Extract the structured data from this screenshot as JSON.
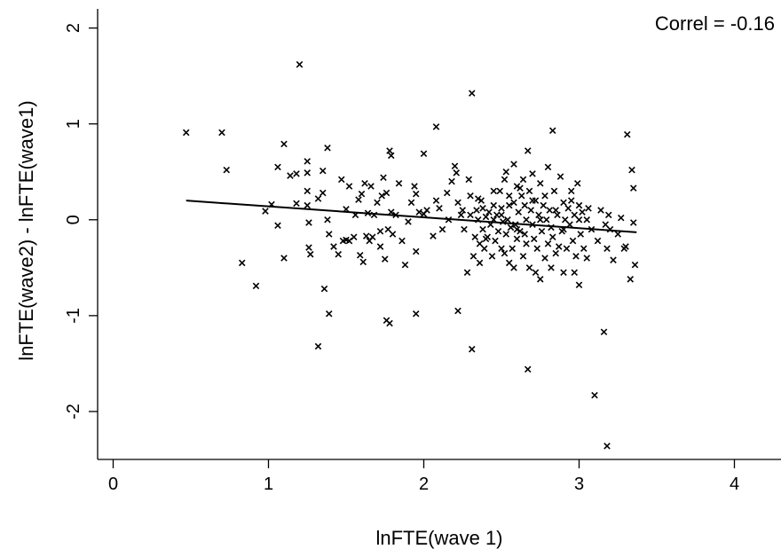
{
  "chart_data": {
    "type": "scatter",
    "title": "",
    "xlabel": "lnFTE(wave 1)",
    "ylabel": "lnFTE(wave2) - lnFTE(wave1)",
    "xlim": [
      -0.1,
      4.3
    ],
    "ylim": [
      -2.5,
      2.2
    ],
    "xticks": [
      0,
      1,
      2,
      3,
      4
    ],
    "yticks": [
      2,
      1,
      0,
      -1,
      -2
    ],
    "xtick_labels": [
      "0",
      "1",
      "2",
      "3",
      "4"
    ],
    "ytick_labels": [
      "2",
      "1",
      "0",
      "-1",
      "-2"
    ],
    "grid": false,
    "annotation": "Correl = -0.16",
    "marker": "x",
    "marker_color": "#000000",
    "fit_line": {
      "x": [
        0.47,
        3.37
      ],
      "y": [
        0.2,
        -0.13
      ]
    },
    "points": [
      [
        0.47,
        0.91
      ],
      [
        0.7,
        0.91
      ],
      [
        0.73,
        0.52
      ],
      [
        0.83,
        -0.45
      ],
      [
        0.92,
        -0.69
      ],
      [
        0.98,
        0.09
      ],
      [
        1.02,
        0.16
      ],
      [
        1.06,
        0.55
      ],
      [
        1.06,
        -0.06
      ],
      [
        1.1,
        0.79
      ],
      [
        1.1,
        -0.4
      ],
      [
        1.14,
        0.46
      ],
      [
        1.18,
        0.48
      ],
      [
        1.2,
        1.62
      ],
      [
        1.18,
        0.17
      ],
      [
        1.25,
        0.61
      ],
      [
        1.25,
        0.49
      ],
      [
        1.25,
        0.3
      ],
      [
        1.25,
        0.15
      ],
      [
        1.26,
        -0.03
      ],
      [
        1.26,
        -0.29
      ],
      [
        1.27,
        -0.36
      ],
      [
        1.32,
        0.22
      ],
      [
        1.32,
        -1.32
      ],
      [
        1.35,
        0.51
      ],
      [
        1.35,
        0.28
      ],
      [
        1.36,
        -0.72
      ],
      [
        1.38,
        0.75
      ],
      [
        1.38,
        0.0
      ],
      [
        1.39,
        -0.15
      ],
      [
        1.39,
        -0.98
      ],
      [
        1.42,
        -0.28
      ],
      [
        1.45,
        -0.36
      ],
      [
        1.47,
        0.42
      ],
      [
        1.48,
        -0.22
      ],
      [
        1.5,
        -0.21
      ],
      [
        1.5,
        0.11
      ],
      [
        1.52,
        0.35
      ],
      [
        1.52,
        -0.22
      ],
      [
        1.55,
        -0.18
      ],
      [
        1.56,
        0.05
      ],
      [
        1.58,
        0.21
      ],
      [
        1.59,
        -0.37
      ],
      [
        1.6,
        0.27
      ],
      [
        1.61,
        -0.44
      ],
      [
        1.62,
        0.38
      ],
      [
        1.63,
        -0.17
      ],
      [
        1.64,
        0.07
      ],
      [
        1.65,
        -0.22
      ],
      [
        1.66,
        0.35
      ],
      [
        1.67,
        -0.18
      ],
      [
        1.68,
        0.05
      ],
      [
        1.7,
        0.18
      ],
      [
        1.72,
        -0.28
      ],
      [
        1.72,
        -0.12
      ],
      [
        1.73,
        0.25
      ],
      [
        1.74,
        0.44
      ],
      [
        1.75,
        -0.41
      ],
      [
        1.76,
        -1.05
      ],
      [
        1.76,
        0.28
      ],
      [
        1.77,
        -0.1
      ],
      [
        1.78,
        0.72
      ],
      [
        1.78,
        -1.08
      ],
      [
        1.79,
        0.67
      ],
      [
        1.79,
        0.08
      ],
      [
        1.8,
        -0.15
      ],
      [
        1.82,
        0.05
      ],
      [
        1.84,
        0.38
      ],
      [
        1.86,
        -0.22
      ],
      [
        1.88,
        -0.47
      ],
      [
        1.9,
        -0.02
      ],
      [
        1.92,
        0.18
      ],
      [
        1.94,
        0.35
      ],
      [
        1.95,
        0.27
      ],
      [
        1.95,
        -0.98
      ],
      [
        1.95,
        -0.33
      ],
      [
        1.97,
        0.08
      ],
      [
        2.0,
        0.06
      ],
      [
        2.0,
        0.69
      ],
      [
        2.02,
        0.1
      ],
      [
        2.06,
        -0.17
      ],
      [
        2.08,
        0.97
      ],
      [
        2.08,
        0.2
      ],
      [
        2.1,
        0.12
      ],
      [
        2.12,
        -0.1
      ],
      [
        2.15,
        0.28
      ],
      [
        2.16,
        0.0
      ],
      [
        2.18,
        0.4
      ],
      [
        2.2,
        0.56
      ],
      [
        2.21,
        0.49
      ],
      [
        2.22,
        -0.95
      ],
      [
        2.22,
        0.18
      ],
      [
        2.24,
        0.05
      ],
      [
        2.25,
        0.1
      ],
      [
        2.26,
        -0.1
      ],
      [
        2.28,
        -0.55
      ],
      [
        2.29,
        0.42
      ],
      [
        2.3,
        0.25
      ],
      [
        2.3,
        0.05
      ],
      [
        2.31,
        1.32
      ],
      [
        2.31,
        -1.35
      ],
      [
        2.32,
        -0.38
      ],
      [
        2.33,
        -0.18
      ],
      [
        2.34,
        0.1
      ],
      [
        2.35,
        0.0
      ],
      [
        2.36,
        -0.25
      ],
      [
        2.36,
        -0.45
      ],
      [
        2.37,
        0.2
      ],
      [
        2.38,
        -0.1
      ],
      [
        2.39,
        -0.3
      ],
      [
        2.4,
        0.03
      ],
      [
        2.41,
        -0.18
      ],
      [
        2.42,
        0.08
      ],
      [
        2.43,
        -0.05
      ],
      [
        2.44,
        -0.38
      ],
      [
        2.45,
        0.15
      ],
      [
        2.45,
        0.0
      ],
      [
        2.46,
        -0.22
      ],
      [
        2.47,
        0.05
      ],
      [
        2.48,
        -0.12
      ],
      [
        2.49,
        0.3
      ],
      [
        2.5,
        -0.3
      ],
      [
        2.5,
        0.12
      ],
      [
        2.51,
        -0.02
      ],
      [
        2.52,
        0.42
      ],
      [
        2.53,
        -0.15
      ],
      [
        2.53,
        0.5
      ],
      [
        2.54,
        0.0
      ],
      [
        2.55,
        -0.45
      ],
      [
        2.55,
        0.25
      ],
      [
        2.56,
        -0.08
      ],
      [
        2.57,
        -0.3
      ],
      [
        2.58,
        0.18
      ],
      [
        2.58,
        0.58
      ],
      [
        2.59,
        -0.05
      ],
      [
        2.6,
        0.35
      ],
      [
        2.6,
        -0.2
      ],
      [
        2.61,
        0.08
      ],
      [
        2.62,
        -0.12
      ],
      [
        2.63,
        0.25
      ],
      [
        2.64,
        -0.38
      ],
      [
        2.64,
        0.42
      ],
      [
        2.65,
        0.15
      ],
      [
        2.66,
        0.0
      ],
      [
        2.66,
        -0.25
      ],
      [
        2.67,
        0.72
      ],
      [
        2.67,
        -1.56
      ],
      [
        2.68,
        -0.5
      ],
      [
        2.68,
        0.3
      ],
      [
        2.69,
        0.1
      ],
      [
        2.7,
        -0.05
      ],
      [
        2.7,
        0.48
      ],
      [
        2.71,
        -0.2
      ],
      [
        2.72,
        0.2
      ],
      [
        2.73,
        -0.3
      ],
      [
        2.74,
        0.05
      ],
      [
        2.75,
        -0.62
      ],
      [
        2.75,
        0.38
      ],
      [
        2.76,
        -0.12
      ],
      [
        2.77,
        0.15
      ],
      [
        2.78,
        -0.4
      ],
      [
        2.78,
        0.25
      ],
      [
        2.79,
        0.0
      ],
      [
        2.8,
        -0.25
      ],
      [
        2.8,
        0.55
      ],
      [
        2.81,
        0.1
      ],
      [
        2.82,
        -0.08
      ],
      [
        2.83,
        0.93
      ],
      [
        2.83,
        -0.18
      ],
      [
        2.84,
        0.3
      ],
      [
        2.85,
        -0.35
      ],
      [
        2.86,
        0.05
      ],
      [
        2.87,
        -0.28
      ],
      [
        2.88,
        0.45
      ],
      [
        2.89,
        -0.12
      ],
      [
        2.9,
        0.18
      ],
      [
        2.9,
        -0.55
      ],
      [
        2.91,
        0.0
      ],
      [
        2.92,
        -0.3
      ],
      [
        2.93,
        0.12
      ],
      [
        2.94,
        -0.05
      ],
      [
        2.95,
        0.3
      ],
      [
        2.96,
        -0.22
      ],
      [
        2.97,
        0.05
      ],
      [
        2.98,
        -0.38
      ],
      [
        2.99,
        0.38
      ],
      [
        3.0,
        -0.68
      ],
      [
        3.0,
        0.15
      ],
      [
        3.01,
        -0.15
      ],
      [
        3.02,
        0.08
      ],
      [
        3.03,
        -0.3
      ],
      [
        3.05,
        0.0
      ],
      [
        3.06,
        0.12
      ],
      [
        3.08,
        -0.1
      ],
      [
        3.1,
        -1.83
      ],
      [
        3.12,
        -0.22
      ],
      [
        3.14,
        0.1
      ],
      [
        3.16,
        -1.17
      ],
      [
        3.17,
        -0.05
      ],
      [
        3.18,
        -2.36
      ],
      [
        3.18,
        -0.3
      ],
      [
        3.19,
        0.05
      ],
      [
        3.2,
        -0.1
      ],
      [
        3.22,
        -0.42
      ],
      [
        3.25,
        -0.15
      ],
      [
        3.27,
        0.02
      ],
      [
        3.29,
        -0.3
      ],
      [
        3.3,
        -0.28
      ],
      [
        3.31,
        0.89
      ],
      [
        3.33,
        -0.62
      ],
      [
        3.34,
        0.52
      ],
      [
        3.35,
        0.33
      ],
      [
        3.35,
        -0.03
      ],
      [
        3.36,
        -0.47
      ],
      [
        2.6,
        -0.1
      ],
      [
        2.55,
        0.15
      ],
      [
        2.7,
        0.2
      ],
      [
        2.85,
        0.1
      ],
      [
        2.95,
        0.2
      ],
      [
        2.4,
        -0.2
      ],
      [
        2.35,
        0.22
      ],
      [
        2.45,
        0.3
      ],
      [
        2.65,
        -0.15
      ],
      [
        2.75,
        0.0
      ],
      [
        2.9,
        -0.1
      ],
      [
        3.0,
        0.0
      ],
      [
        2.5,
        0.05
      ],
      [
        2.62,
        0.33
      ],
      [
        2.38,
        0.12
      ],
      [
        2.52,
        -0.35
      ],
      [
        2.58,
        -0.5
      ],
      [
        2.72,
        -0.55
      ],
      [
        2.82,
        -0.5
      ],
      [
        3.05,
        -0.4
      ],
      [
        2.97,
        -0.55
      ]
    ]
  }
}
